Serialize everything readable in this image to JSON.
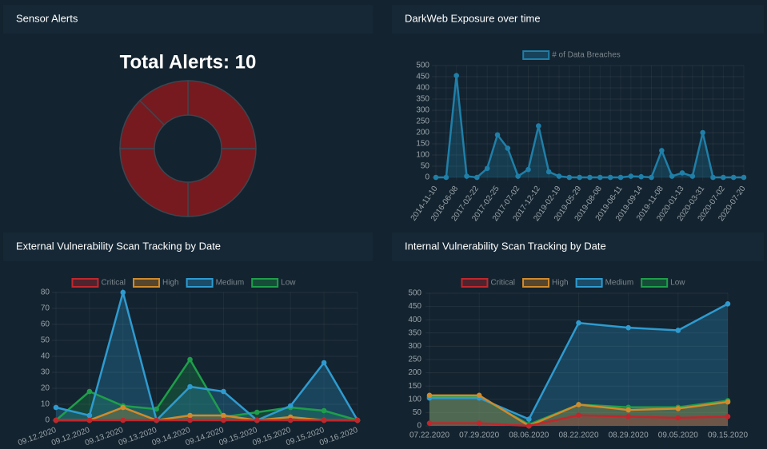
{
  "chart_data": [
    {
      "type": "doughnut",
      "title": "Sensor Alerts",
      "subtitle": "Total Alerts: 10",
      "values": [
        25,
        25,
        25,
        12.5,
        12.5
      ],
      "color": "#761a1f"
    },
    {
      "type": "line",
      "title": "DarkWeb Exposure over time",
      "categories": [
        "2014-11-10",
        null,
        "2016-06-08",
        null,
        "2017-02-22",
        null,
        "2017-02-25",
        null,
        "2017-07-02",
        null,
        "2017-12-12",
        null,
        "2019-02-19",
        null,
        "2019-05-29",
        null,
        "2019-08-08",
        null,
        "2019-06-11",
        null,
        "2019-09-14",
        null,
        "2019-11-08",
        null,
        "2020-01-13",
        null,
        "2020-03-31",
        null,
        "2020-07-02",
        null,
        "2020-07-20"
      ],
      "series": [
        {
          "name": "# of Data Breaches",
          "color": "#1f7fa8",
          "values": [
            0,
            0,
            455,
            5,
            0,
            40,
            190,
            130,
            5,
            35,
            230,
            25,
            5,
            0,
            0,
            0,
            0,
            0,
            0,
            5,
            3,
            0,
            120,
            5,
            20,
            5,
            200,
            0,
            0,
            0,
            0
          ]
        }
      ],
      "ylim": [
        0,
        500
      ],
      "yticks": [
        0,
        50,
        100,
        150,
        200,
        250,
        300,
        350,
        400,
        450,
        500
      ],
      "grid": true,
      "legend": "top"
    },
    {
      "type": "line",
      "title": "External Vulnerability Scan Tracking by Date",
      "categories": [
        "09.12.2020",
        "09.12.2020",
        "09.13.2020",
        "09.13.2020",
        "09.14.2020",
        "09.14.2020",
        "09.15.2020",
        "09.15.2020",
        "09.15.2020",
        "09.16.2020"
      ],
      "series": [
        {
          "name": "Critical",
          "color": "#c0272d",
          "values": [
            0,
            0,
            0,
            0,
            0,
            0,
            0,
            0,
            0,
            0
          ]
        },
        {
          "name": "High",
          "color": "#d08a2c",
          "values": [
            0,
            0,
            8,
            0,
            3,
            3,
            0,
            2,
            0,
            0
          ]
        },
        {
          "name": "Medium",
          "color": "#2e9bd0",
          "values": [
            8,
            3,
            80,
            0,
            21,
            18,
            0,
            9,
            36,
            0
          ]
        },
        {
          "name": "Low",
          "color": "#1e9e4a",
          "values": [
            0,
            18,
            9,
            7,
            38,
            2,
            5,
            8,
            6,
            0
          ]
        }
      ],
      "ylim": [
        0,
        80
      ],
      "yticks": [
        0,
        10,
        20,
        30,
        40,
        50,
        60,
        70,
        80
      ],
      "grid": true,
      "legend": "top"
    },
    {
      "type": "line",
      "title": "Internal Vulnerability Scan Tracking by Date",
      "categories": [
        "07.22.2020",
        "07.29.2020",
        "08.06.2020",
        "08.22.2020",
        "08.29.2020",
        "09.05.2020",
        "09.15.2020"
      ],
      "series": [
        {
          "name": "Critical",
          "color": "#c0272d",
          "values": [
            10,
            10,
            0,
            40,
            35,
            30,
            35
          ]
        },
        {
          "name": "High",
          "color": "#d08a2c",
          "values": [
            115,
            115,
            0,
            80,
            60,
            65,
            90
          ]
        },
        {
          "name": "Medium",
          "color": "#2e9bd0",
          "values": [
            105,
            105,
            25,
            388,
            370,
            360,
            460
          ]
        },
        {
          "name": "Low",
          "color": "#1e9e4a",
          "values": [
            110,
            110,
            5,
            80,
            70,
            70,
            95
          ]
        }
      ],
      "ylim": [
        0,
        500
      ],
      "yticks": [
        0,
        50,
        100,
        150,
        200,
        250,
        300,
        350,
        400,
        450,
        500
      ],
      "grid": true,
      "legend": "top"
    }
  ]
}
